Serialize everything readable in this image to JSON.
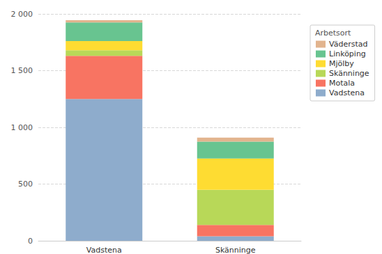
{
  "chart_data": {
    "type": "bar",
    "stacked": true,
    "grid": true,
    "legend": "top-right",
    "legend_title": "Arbetsort",
    "categories": [
      "Vadstena",
      "Skänninge"
    ],
    "series": [
      {
        "name": "Vadstena",
        "color": "#8eaccc",
        "values": [
          1250,
          40
        ]
      },
      {
        "name": "Motala",
        "color": "#f87462",
        "values": [
          380,
          100
        ]
      },
      {
        "name": "Skänninge",
        "color": "#b8d858",
        "values": [
          50,
          310
        ]
      },
      {
        "name": "Mjölby",
        "color": "#fedc32",
        "values": [
          80,
          275
        ]
      },
      {
        "name": "Linköping",
        "color": "#68c490",
        "values": [
          165,
          150
        ]
      },
      {
        "name": "Väderstad",
        "color": "#e2b48e",
        "values": [
          20,
          35
        ]
      }
    ],
    "ylim": [
      0,
      2000
    ],
    "yticks": [
      0,
      500,
      {
        "value": 1000,
        "label": "1 000"
      },
      {
        "value": 1500,
        "label": "1 500"
      },
      {
        "value": 2000,
        "label": "2 000"
      }
    ]
  }
}
